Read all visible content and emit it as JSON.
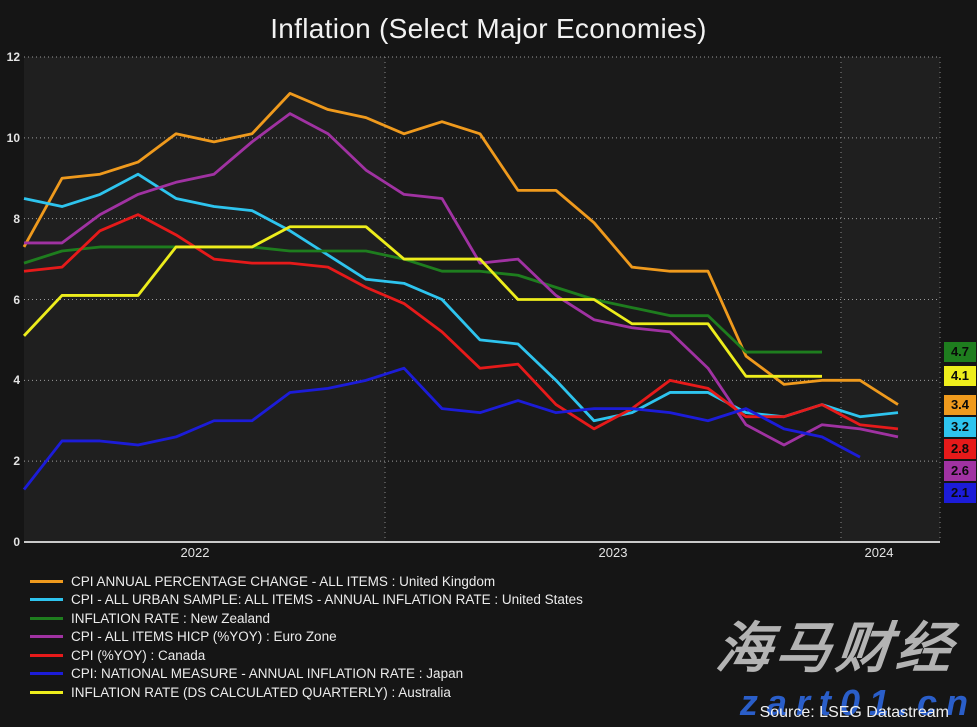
{
  "title": "Inflation (Select Major Economies)",
  "source_credit": "Source: LSEG Datastream",
  "watermark": {
    "brand": "海马财经",
    "url": "zart01.cn"
  },
  "colors": {
    "background": "#151515",
    "band_light": "#1f1f1f",
    "band_dark": "#1a1a1a",
    "gridline": "#9c9c9c",
    "year_gridline": "#878787",
    "axis_line": "#c9c9c9",
    "text": "#ececec"
  },
  "chart_data": {
    "type": "line",
    "title": "Inflation (Select Major Economies)",
    "xlabel": "",
    "ylabel": "",
    "ylim": [
      0,
      12
    ],
    "yticks": [
      0,
      2,
      4,
      6,
      8,
      10,
      12
    ],
    "grid": "dotted horizontal gridlines at each ytick; dotted vertical gridlines at year boundaries and right plot edge; alternating year background bands",
    "legend_position": "bottom-left",
    "x_months": [
      "2022-03",
      "2022-04",
      "2022-05",
      "2022-06",
      "2022-07",
      "2022-08",
      "2022-09",
      "2022-10",
      "2022-11",
      "2022-12",
      "2023-01",
      "2023-02",
      "2023-03",
      "2023-04",
      "2023-05",
      "2023-06",
      "2023-07",
      "2023-08",
      "2023-09",
      "2023-10",
      "2023-11",
      "2023-12",
      "2024-01",
      "2024-02"
    ],
    "xtick_year_labels": [
      "2022",
      "2023",
      "2024"
    ],
    "series": [
      {
        "name": "United Kingdom",
        "legend": "CPI ANNUAL PERCENTAGE CHANGE - ALL ITEMS : United Kingdom",
        "color": "#ef9a1d",
        "end_label": "3.4",
        "values": [
          7.3,
          9.0,
          9.1,
          9.4,
          10.1,
          9.9,
          10.1,
          11.1,
          10.7,
          10.5,
          10.1,
          10.4,
          10.1,
          8.7,
          8.7,
          7.9,
          6.8,
          6.7,
          6.7,
          4.6,
          3.9,
          4.0,
          4.0,
          3.4
        ]
      },
      {
        "name": "United States",
        "legend": "CPI - ALL URBAN SAMPLE: ALL ITEMS - ANNUAL INFLATION RATE : United States",
        "color": "#2ec4ee",
        "end_label": "3.2",
        "values": [
          8.5,
          8.3,
          8.6,
          9.1,
          8.5,
          8.3,
          8.2,
          7.7,
          7.1,
          6.5,
          6.4,
          6.0,
          5.0,
          4.9,
          4.0,
          3.0,
          3.2,
          3.7,
          3.7,
          3.2,
          3.1,
          3.4,
          3.1,
          3.2
        ]
      },
      {
        "name": "New Zealand",
        "legend": "INFLATION RATE : New Zealand",
        "color": "#1e7d1e",
        "end_label": "4.7",
        "values": [
          6.9,
          7.2,
          7.3,
          7.3,
          7.3,
          7.3,
          7.3,
          7.2,
          7.2,
          7.2,
          7.0,
          6.7,
          6.7,
          6.6,
          6.3,
          6.0,
          5.8,
          5.6,
          5.6,
          4.7,
          4.7,
          4.7,
          null,
          null
        ]
      },
      {
        "name": "Euro Zone",
        "legend": "CPI - ALL ITEMS HICP (%YOY) : Euro Zone",
        "color": "#a032a2",
        "end_label": "2.6",
        "values": [
          7.4,
          7.4,
          8.1,
          8.6,
          8.9,
          9.1,
          9.9,
          10.6,
          10.1,
          9.2,
          8.6,
          8.5,
          6.9,
          7.0,
          6.1,
          5.5,
          5.3,
          5.2,
          4.3,
          2.9,
          2.4,
          2.9,
          2.8,
          2.6
        ]
      },
      {
        "name": "Canada",
        "legend": "CPI (%YOY) : Canada",
        "color": "#e61a1a",
        "end_label": "2.8",
        "values": [
          6.7,
          6.8,
          7.7,
          8.1,
          7.6,
          7.0,
          6.9,
          6.9,
          6.8,
          6.3,
          5.9,
          5.2,
          4.3,
          4.4,
          3.4,
          2.8,
          3.3,
          4.0,
          3.8,
          3.1,
          3.1,
          3.4,
          2.9,
          2.8
        ]
      },
      {
        "name": "Japan",
        "legend": "CPI: NATIONAL MEASURE - ANNUAL INFLATION RATE : Japan",
        "color": "#1c1cd8",
        "end_label": "2.1",
        "values": [
          1.3,
          2.5,
          2.5,
          2.4,
          2.6,
          3.0,
          3.0,
          3.7,
          3.8,
          4.0,
          4.3,
          3.3,
          3.2,
          3.5,
          3.2,
          3.3,
          3.3,
          3.2,
          3.0,
          3.3,
          2.8,
          2.6,
          2.1,
          null
        ]
      },
      {
        "name": "Australia",
        "legend": "INFLATION RATE (DS CALCULATED QUARTERLY) : Australia",
        "color": "#eded1c",
        "end_label": "4.1",
        "values": [
          5.1,
          6.1,
          6.1,
          6.1,
          7.3,
          7.3,
          7.3,
          7.8,
          7.8,
          7.8,
          7.0,
          7.0,
          7.0,
          6.0,
          6.0,
          6.0,
          5.4,
          5.4,
          5.4,
          4.1,
          4.1,
          4.1,
          null,
          null
        ]
      }
    ]
  }
}
